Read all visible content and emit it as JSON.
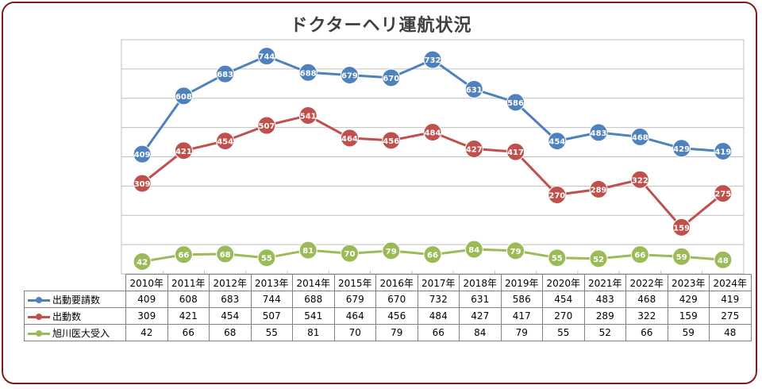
{
  "chart_data": {
    "type": "line",
    "title": "ドクターヘリ運航状況",
    "categories": [
      "2010年",
      "2011年",
      "2012年",
      "2013年",
      "2014年",
      "2015年",
      "2016年",
      "2017年",
      "2018年",
      "2019年",
      "2020年",
      "2021年",
      "2022年",
      "2023年",
      "2024年"
    ],
    "series": [
      {
        "name": "出動要請数",
        "color": "#4f81bd",
        "values": [
          409,
          608,
          683,
          744,
          688,
          679,
          670,
          732,
          631,
          586,
          454,
          483,
          468,
          429,
          419
        ]
      },
      {
        "name": "出動数",
        "color": "#c0504d",
        "values": [
          309,
          421,
          454,
          507,
          541,
          464,
          456,
          484,
          427,
          417,
          270,
          289,
          322,
          159,
          275
        ]
      },
      {
        "name": "旭川医大受入",
        "color": "#9bbb59",
        "values": [
          42,
          66,
          68,
          55,
          81,
          70,
          79,
          66,
          84,
          79,
          55,
          52,
          66,
          59,
          48
        ]
      }
    ],
    "ylim": [
      0,
      800
    ],
    "grid": true,
    "legend_placement": "data-table"
  }
}
